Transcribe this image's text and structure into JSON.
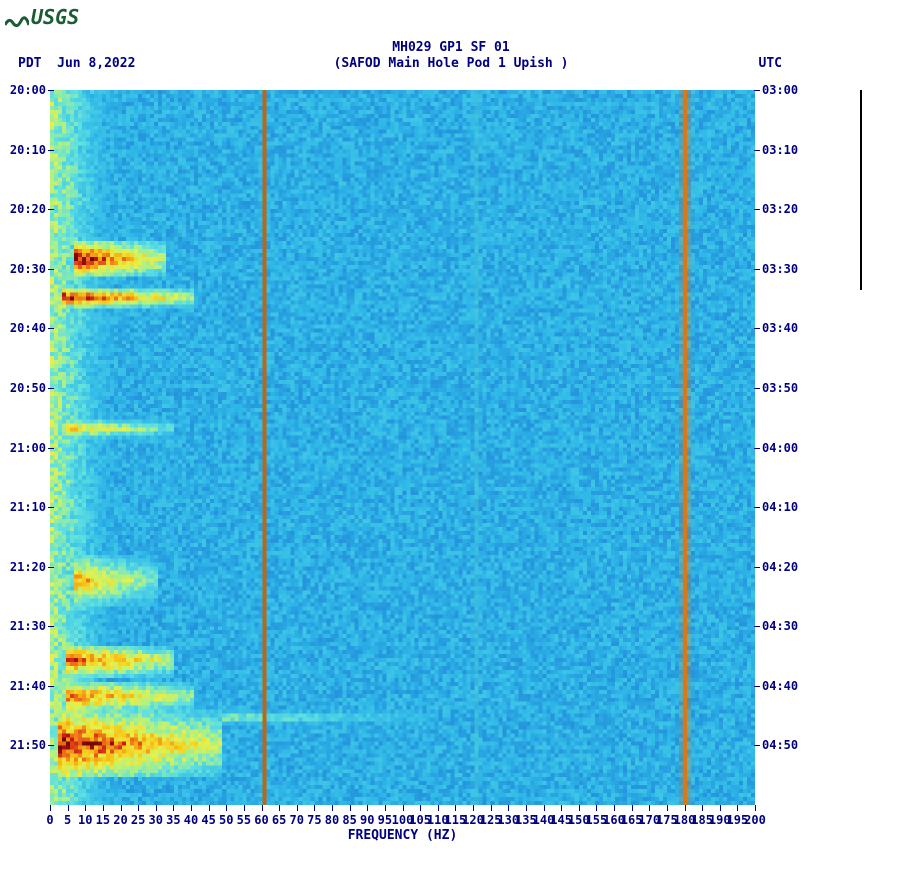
{
  "logo": {
    "text": "USGS"
  },
  "header": {
    "title_line1": "MH029 GP1 SF 01",
    "title_line2": "(SAFOD Main Hole Pod 1 Upish )",
    "tz_left": "PDT",
    "date": "Jun 8,2022",
    "tz_right": "UTC"
  },
  "axes": {
    "x_label": "FREQUENCY (HZ)",
    "x_min": 0,
    "x_max": 200,
    "x_tick_step": 5,
    "y_ticks_left": [
      "20:00",
      "20:10",
      "20:20",
      "20:30",
      "20:40",
      "20:50",
      "21:00",
      "21:10",
      "21:20",
      "21:30",
      "21:40",
      "21:50"
    ],
    "y_ticks_right": [
      "03:00",
      "03:10",
      "03:20",
      "03:30",
      "03:40",
      "03:50",
      "04:00",
      "04:10",
      "04:20",
      "04:30",
      "04:40",
      "04:50"
    ],
    "y_tick_rows": 12,
    "y_total_minutes": 120
  },
  "spectrogram": {
    "type": "heatmap",
    "background_color": "#2fb8e8",
    "colormap_stops": [
      {
        "v": 0.0,
        "c": "#0a3b8c"
      },
      {
        "v": 0.15,
        "c": "#1d7bd4"
      },
      {
        "v": 0.3,
        "c": "#2fb8e8"
      },
      {
        "v": 0.45,
        "c": "#5fe0e0"
      },
      {
        "v": 0.55,
        "c": "#a8f08a"
      },
      {
        "v": 0.65,
        "c": "#e8f048"
      },
      {
        "v": 0.75,
        "c": "#f8c818"
      },
      {
        "v": 0.85,
        "c": "#f07818"
      },
      {
        "v": 0.95,
        "c": "#c81818"
      },
      {
        "v": 1.0,
        "c": "#780808"
      }
    ],
    "persistent_lines": [
      {
        "freq_hz": 60,
        "color": "#b86818",
        "width": 1
      },
      {
        "freq_hz": 180,
        "color": "#d87818",
        "width": 1.5
      },
      {
        "freq_hz": 120,
        "color": "#48c8d8",
        "width": 0.5
      }
    ],
    "hot_bands": [
      {
        "t0_min": 25,
        "t1_min": 31,
        "f0_hz": 6,
        "f1_hz": 32,
        "peak": 1.0
      },
      {
        "t0_min": 33,
        "t1_min": 36,
        "f0_hz": 3,
        "f1_hz": 40,
        "peak": 1.0
      },
      {
        "t0_min": 55,
        "t1_min": 58,
        "f0_hz": 4,
        "f1_hz": 35,
        "peak": 0.75
      },
      {
        "t0_min": 78,
        "t1_min": 86,
        "f0_hz": 6,
        "f1_hz": 30,
        "peak": 0.8
      },
      {
        "t0_min": 93,
        "t1_min": 98,
        "f0_hz": 4,
        "f1_hz": 35,
        "peak": 0.95
      },
      {
        "t0_min": 99,
        "t1_min": 104,
        "f0_hz": 4,
        "f1_hz": 40,
        "peak": 0.9
      },
      {
        "t0_min": 104,
        "t1_min": 115,
        "f0_hz": 2,
        "f1_hz": 48,
        "peak": 1.0
      },
      {
        "t0_min": 104,
        "t1_min": 106,
        "f0_hz": 48,
        "f1_hz": 110,
        "peak": 0.55
      }
    ],
    "low_freq_column": {
      "f0_hz": 0,
      "f1_hz": 30,
      "base_intensity": 0.55
    },
    "noise_floor_intensity": 0.28,
    "grid_cols": 176,
    "grid_rows": 180
  },
  "colors": {
    "text": "#000080",
    "logo": "#1a5c33"
  }
}
